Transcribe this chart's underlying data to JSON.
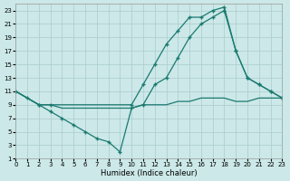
{
  "bg_color": "#cce8e8",
  "grid_color": "#aacccc",
  "line_color": "#1a7a70",
  "xlabel": "Humidex (Indice chaleur)",
  "xlim": [
    0,
    23
  ],
  "ylim": [
    1,
    24
  ],
  "xticks": [
    0,
    1,
    2,
    3,
    4,
    5,
    6,
    7,
    8,
    9,
    10,
    11,
    12,
    13,
    14,
    15,
    16,
    17,
    18,
    19,
    20,
    21,
    22,
    23
  ],
  "yticks": [
    1,
    3,
    5,
    7,
    9,
    11,
    13,
    15,
    17,
    19,
    21,
    23
  ],
  "line1_x": [
    0,
    1,
    2,
    3,
    10,
    11,
    12,
    13,
    14,
    15,
    16,
    17,
    18,
    19,
    20,
    21,
    22,
    23
  ],
  "line1_y": [
    11,
    10,
    9,
    9,
    9,
    12,
    15,
    18,
    20,
    22,
    22,
    23,
    23.5,
    17,
    13,
    12,
    11,
    10
  ],
  "line2_x": [
    0,
    2,
    3,
    4,
    5,
    6,
    7,
    8,
    9,
    10,
    11,
    12,
    13,
    14,
    15,
    16,
    17,
    18,
    19,
    20,
    21,
    22,
    23
  ],
  "line2_y": [
    11,
    9,
    8,
    7,
    6,
    5,
    4,
    3.5,
    2,
    8.5,
    9,
    12,
    13,
    16,
    19,
    21,
    22,
    23,
    17,
    13,
    12,
    11,
    10
  ],
  "line3_x": [
    0,
    1,
    2,
    3,
    4,
    5,
    6,
    7,
    8,
    9,
    10,
    11,
    12,
    13,
    14,
    15,
    16,
    17,
    18,
    19,
    20,
    21,
    22,
    23
  ],
  "line3_y": [
    11,
    10,
    9,
    9,
    8.5,
    8.5,
    8.5,
    8.5,
    8.5,
    8.5,
    8.5,
    9,
    9,
    9,
    9.5,
    9.5,
    10,
    10,
    10,
    9.5,
    9.5,
    10,
    10,
    10
  ],
  "figsize": [
    3.2,
    2.0
  ],
  "dpi": 100
}
